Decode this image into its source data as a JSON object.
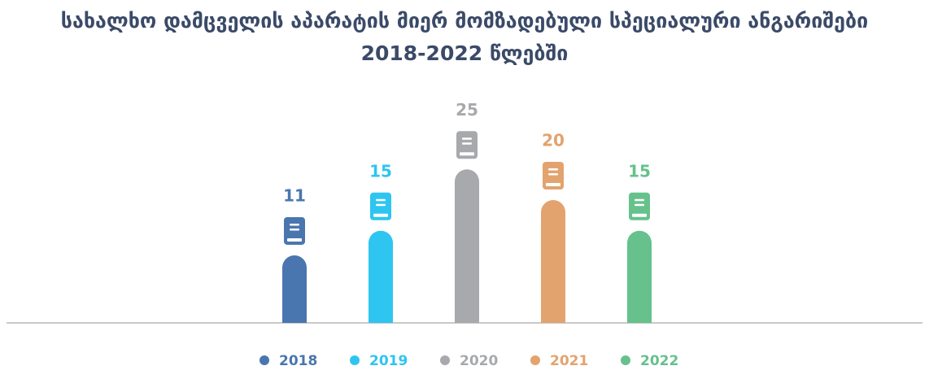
{
  "chart_data": {
    "type": "bar",
    "title": "სახალხო დამცველის აპარატის მიერ მომზადებული სპეციალური ანგარიშები 2018-2022 წლებში",
    "categories": [
      "2018",
      "2019",
      "2020",
      "2021",
      "2022"
    ],
    "values": [
      11,
      15,
      25,
      20,
      15
    ],
    "colors": [
      "#4a76b0",
      "#2ec5f0",
      "#a7a9ac",
      "#e3a36e",
      "#66c18c"
    ]
  }
}
